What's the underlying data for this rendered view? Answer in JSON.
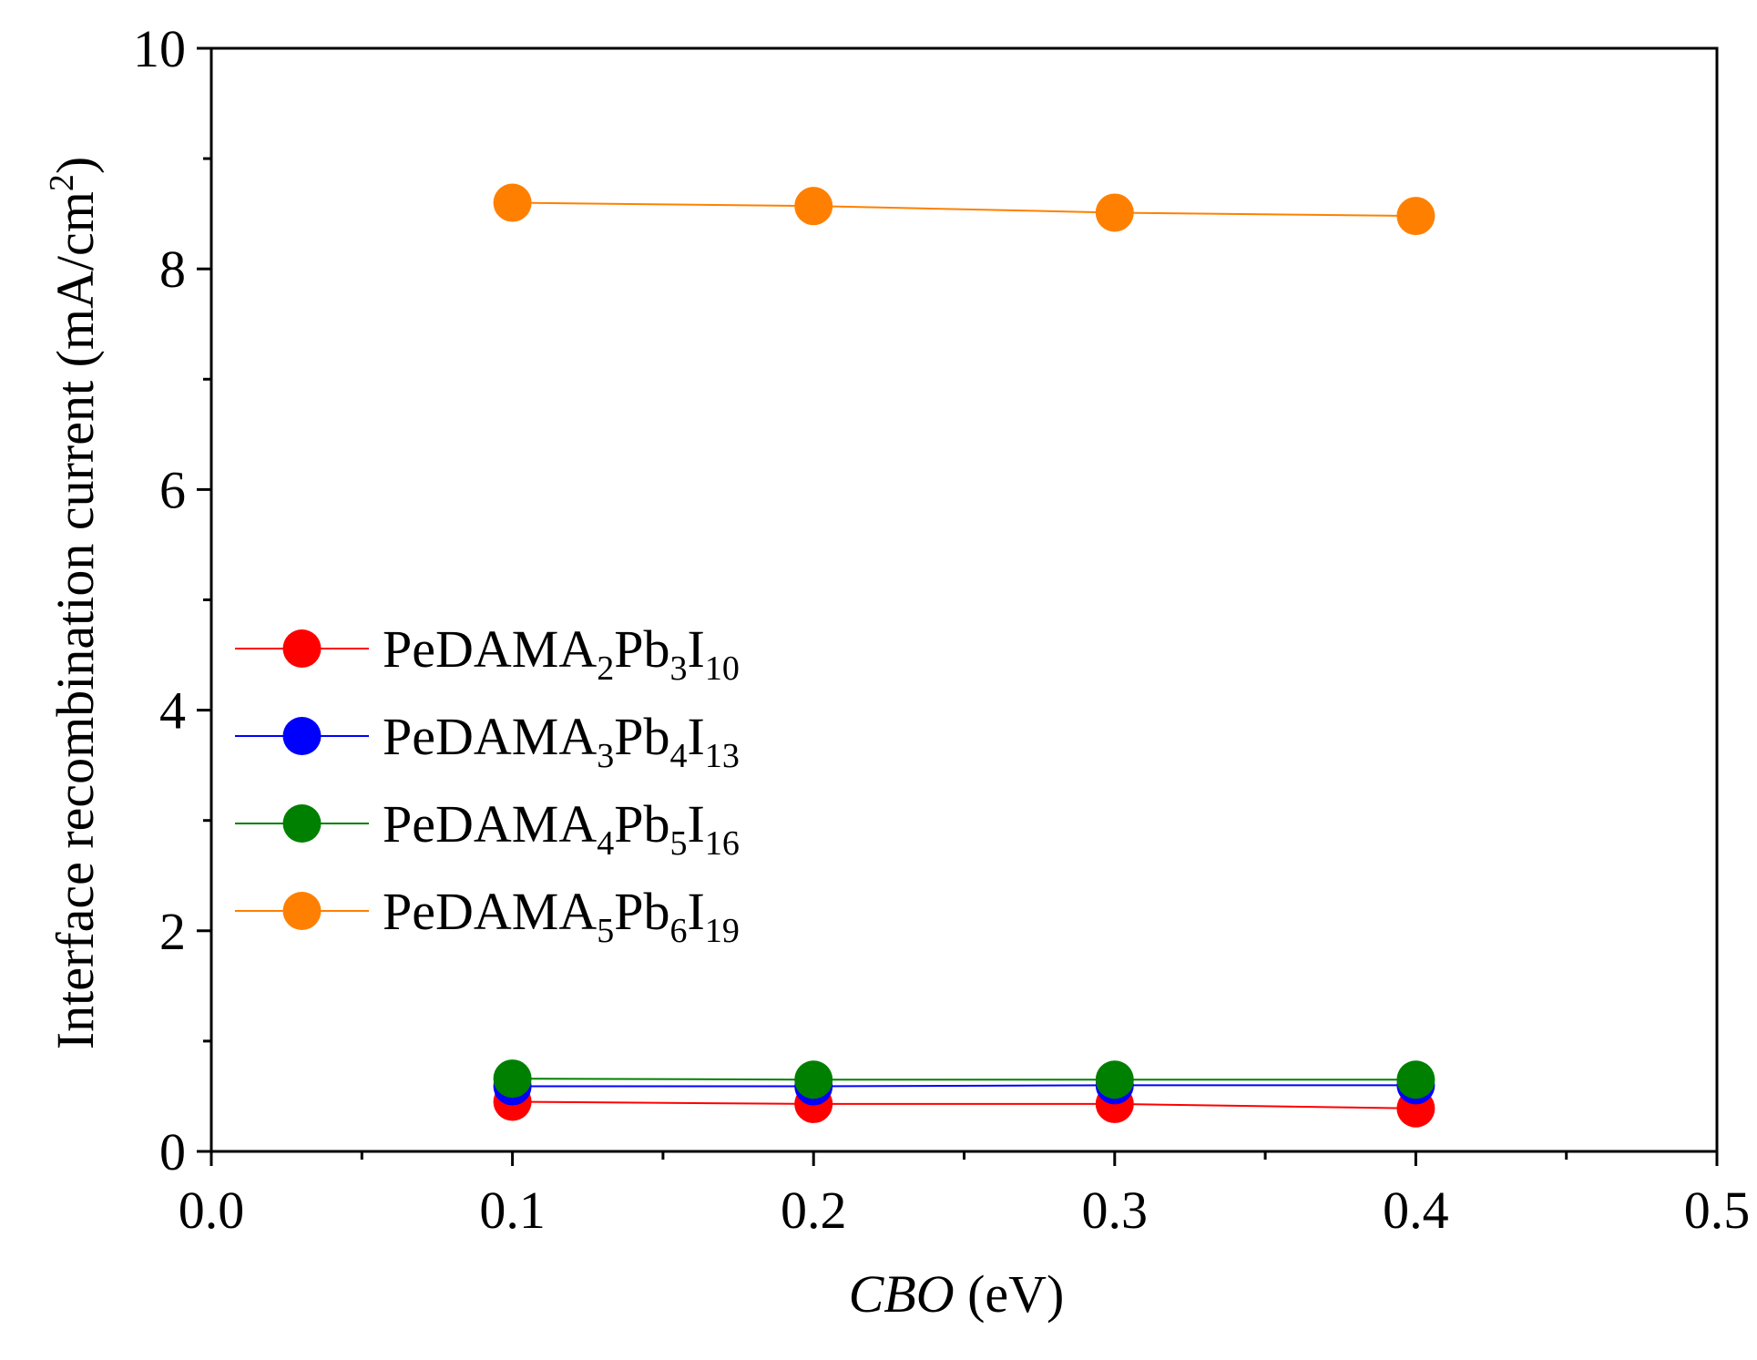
{
  "chart_data": {
    "type": "line",
    "title": "",
    "xlabel": {
      "italic": "CBO",
      "rest": " (eV)"
    },
    "ylabel": {
      "main": "Interface recombination current (mA/cm",
      "sup": "2",
      "close": ")"
    },
    "xlim": [
      0.0,
      0.5
    ],
    "ylim": [
      0,
      10
    ],
    "xticks": [
      "0.0",
      "0.1",
      "0.2",
      "0.3",
      "0.4",
      "0.5"
    ],
    "yticks": [
      "0",
      "2",
      "4",
      "6",
      "8",
      "10"
    ],
    "x": [
      0.1,
      0.2,
      0.3,
      0.4
    ],
    "grid": false,
    "legend_position": "center-left",
    "series": [
      {
        "name": "PeDAMA2Pb3I10",
        "label_parts": [
          "PeDAMA",
          "2",
          "Pb",
          "3",
          "I",
          "10"
        ],
        "color": "#ff0000",
        "values": [
          0.45,
          0.43,
          0.43,
          0.39
        ]
      },
      {
        "name": "PeDAMA3Pb4I13",
        "label_parts": [
          "PeDAMA",
          "3",
          "Pb",
          "4",
          "I",
          "13"
        ],
        "color": "#0000ff",
        "values": [
          0.59,
          0.59,
          0.6,
          0.6
        ]
      },
      {
        "name": "PeDAMA4Pb5I16",
        "label_parts": [
          "PeDAMA",
          "4",
          "Pb",
          "5",
          "I",
          "16"
        ],
        "color": "#008000",
        "values": [
          0.66,
          0.65,
          0.65,
          0.65
        ]
      },
      {
        "name": "PeDAMA5Pb6I19",
        "label_parts": [
          "PeDAMA",
          "5",
          "Pb",
          "6",
          "I",
          "19"
        ],
        "color": "#ff8000",
        "values": [
          8.6,
          8.57,
          8.51,
          8.48
        ]
      }
    ]
  }
}
